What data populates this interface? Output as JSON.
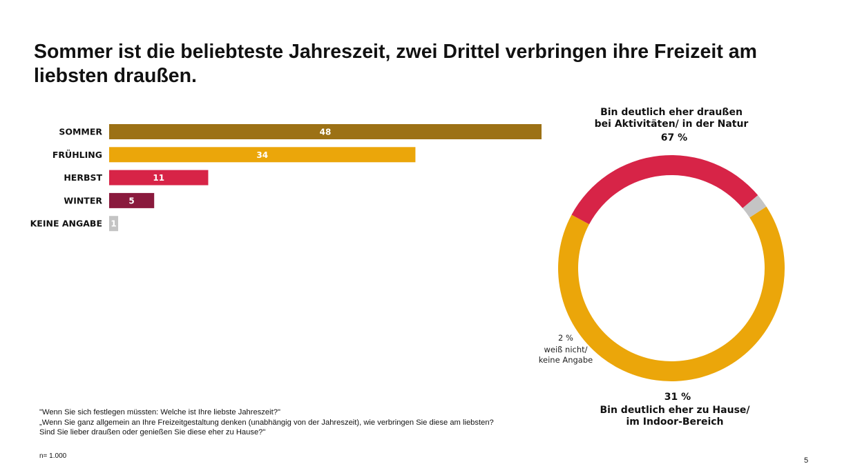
{
  "slide": {
    "title": "Sommer ist die beliebteste Jahreszeit, zwei Drittel verbringen ihre Freizeit am liebsten draußen.",
    "footnote_lines": [
      "\"Wenn Sie sich festlegen müssten: Welche ist Ihre liebste Jahreszeit?\"",
      "„Wenn Sie ganz allgemein an Ihre Freizeitgestaltung denken (unabhängig von der Jahreszeit), wie verbringen Sie diese am liebsten?",
      "Sind Sie lieber draußen oder genießen Sie diese eher zu Hause?\""
    ],
    "sample": "n= 1.000",
    "page_number": "5"
  },
  "chart_data": [
    {
      "type": "bar",
      "orientation": "horizontal",
      "title": "",
      "categories": [
        "SOMMER",
        "FRÜHLING",
        "HERBST",
        "WINTER",
        "KEINE ANGABE"
      ],
      "values": [
        48,
        34,
        11,
        5,
        1
      ],
      "colors": [
        "#9c7115",
        "#eba60a",
        "#d72447",
        "#8a1a3d",
        "#c4c4c4"
      ],
      "xlim": [
        0,
        48
      ],
      "grid": false,
      "xlabel": "",
      "ylabel": ""
    },
    {
      "type": "pie",
      "donut": true,
      "slices": [
        {
          "id": "draussen",
          "value": 67,
          "pct_label": "67 %",
          "label_lines": [
            "Bin deutlich eher draußen",
            "bei Aktivitäten/ in der Natur"
          ],
          "color": "#eba60a"
        },
        {
          "id": "zuhause",
          "value": 31,
          "pct_label": "31 %",
          "label_lines": [
            "Bin deutlich eher zu Hause/",
            "im Indoor-Bereich"
          ],
          "color": "#d72447"
        },
        {
          "id": "keine",
          "value": 2,
          "pct_label": "2 %",
          "label_lines": [
            "weiß nicht/",
            "keine Angabe"
          ],
          "color": "#c4c4c4"
        }
      ]
    }
  ]
}
